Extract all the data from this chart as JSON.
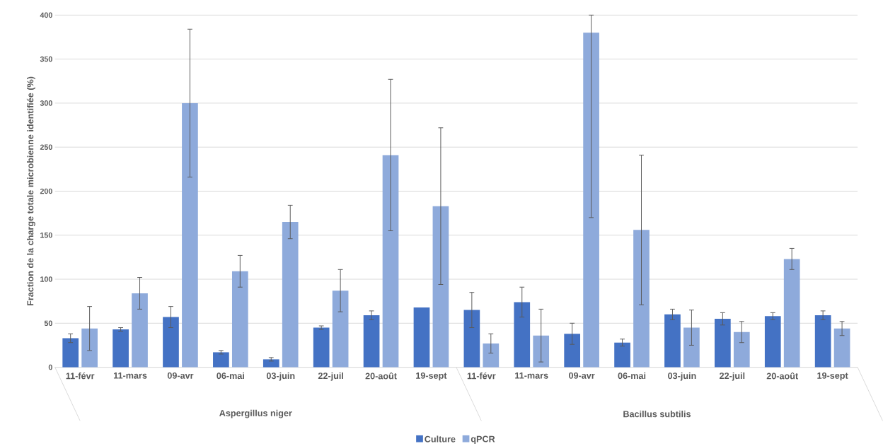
{
  "chart_data": {
    "type": "bar",
    "ylabel": "Fraction de la charge totale microbienne identifiée (%)",
    "categories": [
      "11-févr",
      "11-mars",
      "09-avr",
      "06-mai",
      "03-juin",
      "22-juil",
      "20-août",
      "19-sept",
      "11-févr",
      "11-mars",
      "09-avr",
      "06-mai",
      "03-juin",
      "22-juil",
      "20-août",
      "19-sept"
    ],
    "series": [
      {
        "name": "Culture",
        "color": "#4472c4",
        "values": [
          33,
          43,
          57,
          17,
          9,
          45,
          59,
          68,
          65,
          74,
          38,
          28,
          60,
          55,
          58,
          59
        ],
        "errors": [
          5,
          2,
          12,
          2,
          2,
          2,
          5,
          null,
          20,
          17,
          12,
          4,
          6,
          7,
          4,
          5
        ]
      },
      {
        "name": "qPCR",
        "color": "#8eaadb",
        "values": [
          44,
          84,
          300,
          109,
          165,
          87,
          241,
          183,
          27,
          36,
          380,
          156,
          45,
          40,
          123,
          44
        ],
        "errors": [
          25,
          18,
          84,
          18,
          19,
          24,
          86,
          89,
          11,
          30,
          [
            170,
            400
          ],
          85,
          20,
          12,
          12,
          8
        ]
      }
    ],
    "annotations": [
      "Aspergillus niger",
      "Bacillus subtilis"
    ],
    "ylim": [
      0,
      400
    ],
    "yticks": [
      0,
      50,
      100,
      150,
      200,
      250,
      300,
      350,
      400
    ],
    "grid": "y",
    "legend": "bottom"
  }
}
